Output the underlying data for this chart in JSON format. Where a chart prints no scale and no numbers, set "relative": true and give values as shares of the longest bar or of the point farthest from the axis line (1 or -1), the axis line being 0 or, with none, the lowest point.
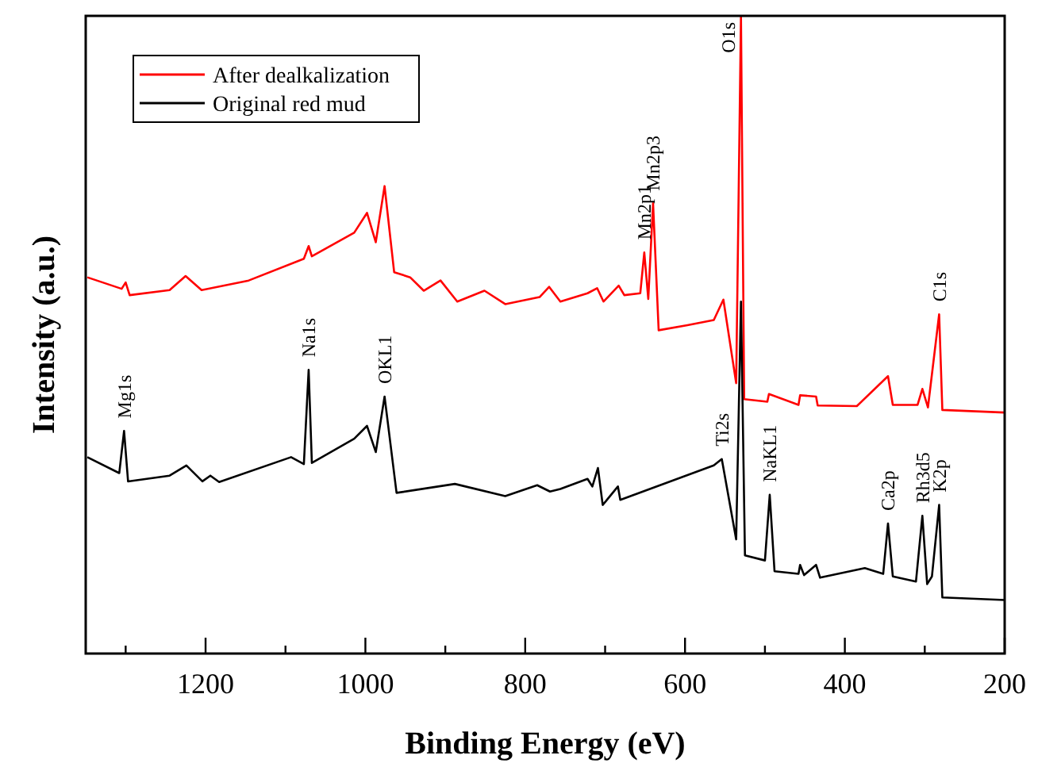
{
  "chart_data": {
    "type": "line",
    "relative": true,
    "xlabel": "Binding Energy (eV)",
    "ylabel": "Intensity (a.u.)",
    "xlim": [
      1350,
      200
    ],
    "xticks": [
      {
        "value": 1300,
        "label": null
      },
      1200,
      {
        "value": 1100,
        "label": null
      },
      1000,
      {
        "value": 900,
        "label": null
      },
      800,
      {
        "value": 700,
        "label": null
      },
      600,
      {
        "value": 500,
        "label": null
      },
      400,
      {
        "value": 300,
        "label": null
      },
      200
    ],
    "legend": "top left",
    "grid": false,
    "marker": "none",
    "line_style": "solid",
    "series": [
      {
        "name": "After dealkalization",
        "color": "#ff0000",
        "x": [
          1348,
          1305,
          1300,
          1295,
          1245,
          1225,
          1205,
          1146,
          1077,
          1071,
          1067,
          1014,
          998,
          987,
          976,
          964,
          944,
          927,
          906,
          885,
          851,
          825,
          782,
          770,
          756,
          722,
          710,
          702,
          683,
          676,
          656,
          651,
          646,
          640,
          633,
          597,
          564,
          552,
          536,
          530,
          526,
          497,
          495,
          458,
          456,
          436,
          434,
          385,
          346,
          340,
          309,
          303,
          296,
          282,
          278,
          200
        ],
        "values": [
          0.59,
          0.572,
          0.582,
          0.562,
          0.57,
          0.592,
          0.57,
          0.585,
          0.619,
          0.639,
          0.623,
          0.66,
          0.691,
          0.645,
          0.733,
          0.598,
          0.59,
          0.569,
          0.585,
          0.552,
          0.569,
          0.548,
          0.559,
          0.575,
          0.552,
          0.565,
          0.573,
          0.552,
          0.577,
          0.562,
          0.565,
          0.629,
          0.556,
          0.706,
          0.507,
          0.515,
          0.523,
          0.555,
          0.424,
          1.0,
          0.399,
          0.395,
          0.407,
          0.39,
          0.405,
          0.403,
          0.389,
          0.388,
          0.435,
          0.39,
          0.39,
          0.415,
          0.386,
          0.532,
          0.382,
          0.378
        ]
      },
      {
        "name": "Original red mud",
        "color": "#000000",
        "x": [
          1348,
          1308,
          1302,
          1297,
          1245,
          1224,
          1204,
          1194,
          1183,
          1093,
          1077,
          1071,
          1067,
          1014,
          998,
          987,
          976,
          961,
          888,
          825,
          785,
          769,
          756,
          722,
          716,
          709,
          703,
          684,
          681,
          564,
          554,
          536,
          530,
          525,
          500,
          494,
          488,
          458,
          456,
          451,
          436,
          431,
          375,
          352,
          346,
          340,
          311,
          303,
          297,
          291,
          282,
          278,
          200
        ],
        "values": [
          0.308,
          0.283,
          0.349,
          0.27,
          0.279,
          0.295,
          0.27,
          0.279,
          0.269,
          0.308,
          0.297,
          0.445,
          0.299,
          0.337,
          0.357,
          0.316,
          0.403,
          0.252,
          0.266,
          0.247,
          0.264,
          0.254,
          0.258,
          0.274,
          0.262,
          0.291,
          0.233,
          0.262,
          0.241,
          0.295,
          0.305,
          0.179,
          0.552,
          0.154,
          0.146,
          0.249,
          0.129,
          0.125,
          0.139,
          0.123,
          0.139,
          0.119,
          0.134,
          0.125,
          0.204,
          0.121,
          0.113,
          0.216,
          0.109,
          0.121,
          0.233,
          0.088,
          0.084
        ]
      }
    ],
    "annotations": [
      {
        "text": "Mg1s",
        "x": 1302,
        "y": 0.349
      },
      {
        "text": "Na1s",
        "x": 1071,
        "y": 0.445
      },
      {
        "text": "OKL1",
        "x": 976,
        "y": 0.403
      },
      {
        "text": "Mn2p1",
        "x": 651,
        "y": 0.629
      },
      {
        "text": "Mn2p3",
        "x": 640,
        "y": 0.706
      },
      {
        "text": "O1s",
        "x": 530,
        "y": 1.0
      },
      {
        "text": "C1s",
        "x": 282,
        "y": 0.532
      },
      {
        "text": "Ti2s",
        "x": 554,
        "y": 0.305
      },
      {
        "text": "NaKL1",
        "x": 494,
        "y": 0.249
      },
      {
        "text": "Ca2p",
        "x": 346,
        "y": 0.204
      },
      {
        "text": "Rh3d5",
        "x": 303,
        "y": 0.216
      },
      {
        "text": "K2p",
        "x": 282,
        "y": 0.233
      }
    ]
  }
}
